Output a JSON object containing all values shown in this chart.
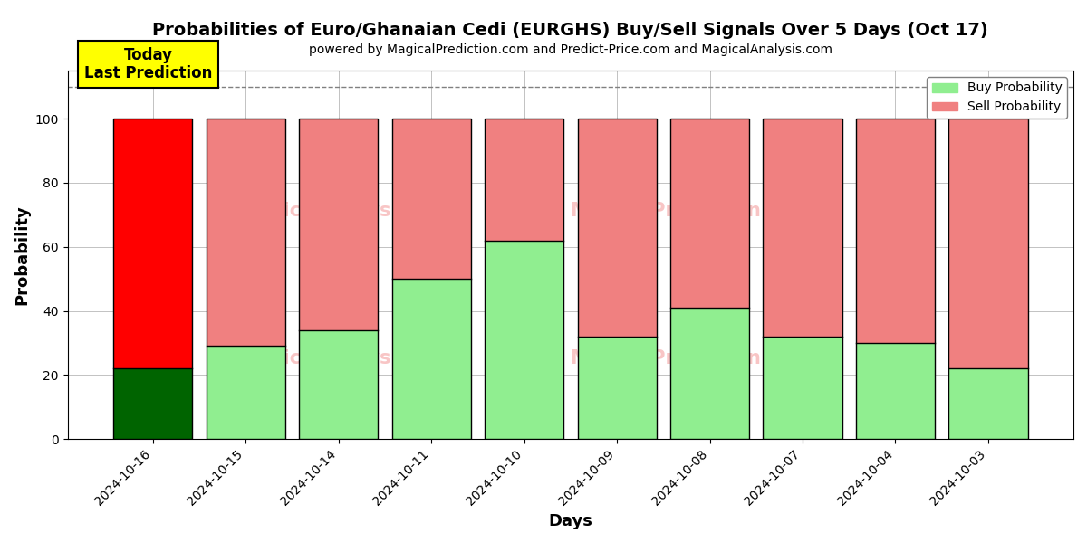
{
  "title": "Probabilities of Euro/Ghanaian Cedi (EURGHS) Buy/Sell Signals Over 5 Days (Oct 17)",
  "subtitle": "powered by MagicalPrediction.com and Predict-Price.com and MagicalAnalysis.com",
  "xlabel": "Days",
  "ylabel": "Probability",
  "categories": [
    "2024-10-16",
    "2024-10-15",
    "2024-10-14",
    "2024-10-11",
    "2024-10-10",
    "2024-10-09",
    "2024-10-08",
    "2024-10-07",
    "2024-10-04",
    "2024-10-03"
  ],
  "buy_values": [
    22,
    29,
    34,
    50,
    62,
    32,
    41,
    32,
    30,
    22
  ],
  "sell_values": [
    78,
    71,
    66,
    50,
    38,
    68,
    59,
    68,
    70,
    78
  ],
  "buy_color_normal": "#90EE90",
  "buy_color_today": "#006400",
  "sell_color_normal": "#F08080",
  "sell_color_today": "#FF0000",
  "today_index": 0,
  "annotation_text": "Today\nLast Prediction",
  "annotation_bg": "#FFFF00",
  "dashed_line_y": 110,
  "ylim": [
    0,
    115
  ],
  "yticks": [
    0,
    20,
    40,
    60,
    80,
    100
  ],
  "legend_buy": "Buy Probability",
  "legend_sell": "Sell Probability",
  "bg_color": "#ffffff",
  "grid_color": "#aaaaaa",
  "bar_width": 0.85,
  "title_fontsize": 14,
  "subtitle_fontsize": 10,
  "xlabel_fontsize": 13,
  "ylabel_fontsize": 13
}
